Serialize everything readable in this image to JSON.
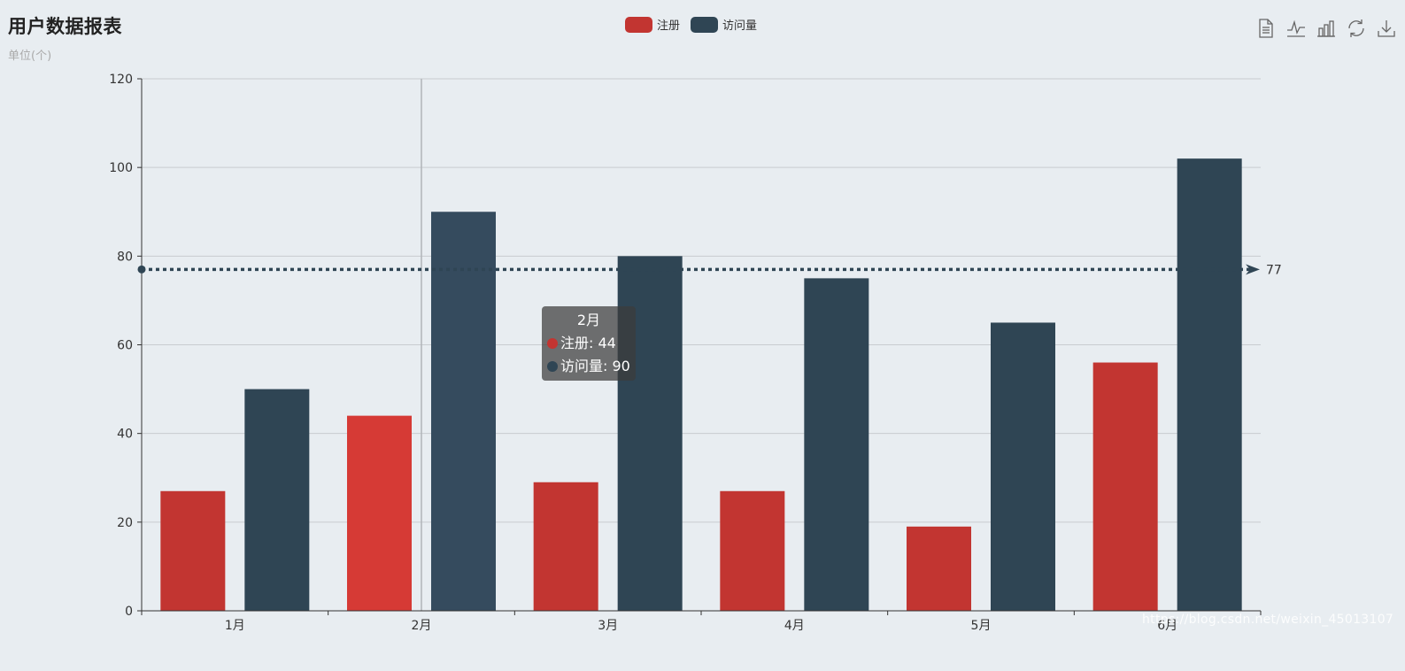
{
  "title": "用户数据报表",
  "subtitle": "单位(个)",
  "legend": [
    {
      "name": "注册",
      "color": "#c23531"
    },
    {
      "name": "访问量",
      "color": "#2f4554"
    }
  ],
  "toolbox": [
    {
      "name": "data-view-icon"
    },
    {
      "name": "line-chart-icon"
    },
    {
      "name": "bar-chart-icon"
    },
    {
      "name": "restore-icon"
    },
    {
      "name": "download-icon"
    }
  ],
  "tooltip": {
    "title": "2月",
    "rows": [
      {
        "text": "注册: 44",
        "color": "#c23531"
      },
      {
        "text": "访问量: 90",
        "color": "#2f4554"
      }
    ]
  },
  "watermark": "https://blog.csdn.net/weixin_45013107",
  "chart_data": {
    "type": "bar",
    "title": "用户数据报表",
    "subtitle": "单位(个)",
    "categories": [
      "1月",
      "2月",
      "3月",
      "4月",
      "5月",
      "6月"
    ],
    "series": [
      {
        "name": "注册",
        "color": "#c23531",
        "values": [
          27,
          44,
          29,
          27,
          19,
          56
        ]
      },
      {
        "name": "访问量",
        "color": "#2f4554",
        "values": [
          50,
          90,
          80,
          75,
          65,
          102
        ]
      }
    ],
    "ylim": [
      0,
      120
    ],
    "yticks": [
      0,
      20,
      40,
      60,
      80,
      100,
      120
    ],
    "grid": true,
    "legend_position": "top-center",
    "highlighted_category": "2月",
    "markline": {
      "value": 77,
      "label": "77",
      "series": "访问量"
    }
  }
}
